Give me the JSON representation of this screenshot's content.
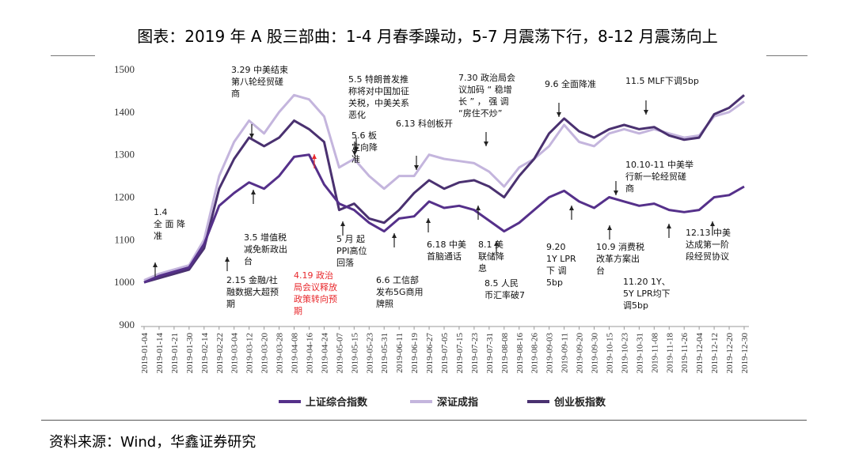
{
  "title": "图表：2019 年 A 股三部曲：1-4 月春季躁动，5-7 月震荡下行，8-12 月震荡向上",
  "source": "资料来源：Wind，华鑫证券研究",
  "chart_data": {
    "type": "line",
    "ylim": [
      900,
      1500
    ],
    "yticks": [
      900,
      1000,
      1100,
      1200,
      1300,
      1400,
      1500
    ],
    "x_labels": [
      "2019-01-04",
      "2019-01-14",
      "2019-01-21",
      "2019-01-30",
      "2019-02-14",
      "2019-02-22",
      "2019-03-04",
      "2019-03-12",
      "2019-03-20",
      "2019-03-28",
      "2019-04-08",
      "2019-04-16",
      "2019-04-24",
      "2019-05-07",
      "2019-05-15",
      "2019-05-23",
      "2019-05-31",
      "2019-06-11",
      "2019-06-19",
      "2019-06-27",
      "2019-07-05",
      "2019-07-15",
      "2019-07-23",
      "2019-07-31",
      "2019-08-08",
      "2019-08-16",
      "2019-08-26",
      "2019-09-03",
      "2019-09-11",
      "2019-09-20",
      "2019-09-30",
      "2019-10-15",
      "2019-10-23",
      "2019-10-31",
      "2019-11-08",
      "2019-11-18",
      "2019-11-26",
      "2019-12-04",
      "2019-12-12",
      "2019-12-20",
      "2019-12-30"
    ],
    "legend_position": "bottom",
    "series": [
      {
        "name": "上证综合指数",
        "color": "#55308a",
        "values": [
          1000,
          1015,
          1025,
          1035,
          1090,
          1180,
          1210,
          1235,
          1220,
          1250,
          1295,
          1300,
          1230,
          1185,
          1170,
          1140,
          1120,
          1150,
          1155,
          1190,
          1175,
          1180,
          1170,
          1145,
          1120,
          1140,
          1170,
          1200,
          1215,
          1190,
          1175,
          1200,
          1190,
          1180,
          1185,
          1170,
          1165,
          1170,
          1200,
          1205,
          1225
        ]
      },
      {
        "name": "深证成指",
        "color": "#c4b5dd",
        "values": [
          1005,
          1020,
          1030,
          1040,
          1100,
          1250,
          1330,
          1380,
          1350,
          1400,
          1440,
          1430,
          1390,
          1270,
          1290,
          1250,
          1220,
          1250,
          1250,
          1300,
          1290,
          1285,
          1280,
          1260,
          1225,
          1270,
          1290,
          1320,
          1370,
          1330,
          1320,
          1350,
          1360,
          1350,
          1360,
          1350,
          1340,
          1345,
          1390,
          1400,
          1425
        ]
      },
      {
        "name": "创业板指数",
        "color": "#4a3170",
        "values": [
          1000,
          1010,
          1020,
          1030,
          1080,
          1220,
          1290,
          1340,
          1320,
          1340,
          1380,
          1360,
          1330,
          1170,
          1185,
          1150,
          1140,
          1170,
          1210,
          1240,
          1220,
          1235,
          1240,
          1225,
          1200,
          1250,
          1290,
          1350,
          1385,
          1355,
          1340,
          1360,
          1370,
          1360,
          1365,
          1345,
          1335,
          1340,
          1395,
          1410,
          1440
        ]
      }
    ],
    "annotations": [
      {
        "lines": [
          "1.4",
          "全 面 降",
          "准"
        ],
        "at": 0,
        "color": "#111"
      },
      {
        "lines": [
          "3.29 中美结束",
          "第八轮经贸磋",
          "商"
        ],
        "at": 9,
        "color": "#111"
      },
      {
        "lines": [
          "5.5 特朗普发推",
          "称将对中国加征",
          "关税，中美关系",
          "恶化"
        ],
        "at": 13,
        "color": "#111"
      },
      {
        "lines": [
          "5.6 板",
          "定向降",
          "准"
        ],
        "at": 13,
        "color": "#111"
      },
      {
        "lines": [
          "6.13 科创板开"
        ],
        "at": 17,
        "color": "#111"
      },
      {
        "lines": [
          "7.30 政治局会",
          "议加码 “ 稳增",
          "长 ” ， 强 调",
          "“房住不炒”"
        ],
        "at": 23,
        "color": "#111"
      },
      {
        "lines": [
          "9.6 全面降准"
        ],
        "at": 27,
        "color": "#111"
      },
      {
        "lines": [
          "11.5 MLF下调5bp"
        ],
        "at": 34,
        "color": "#111"
      },
      {
        "lines": [
          "10.10-11 中美举",
          "行新一轮经贸磋",
          "商"
        ],
        "at": 31,
        "color": "#111"
      },
      {
        "lines": [
          "3.5 增值税",
          "减免新政出",
          "台"
        ],
        "at": 7,
        "color": "#111"
      },
      {
        "lines": [
          "2.15 金融/社",
          "融数据大超预",
          "期"
        ],
        "at": 4,
        "color": "#111"
      },
      {
        "lines": [
          "4.19 政治",
          "局会议释放",
          "政策转向预",
          "期"
        ],
        "at": 11,
        "color": "#e8282c"
      },
      {
        "lines": [
          "5 月 起",
          "PPI高位",
          "回落"
        ],
        "at": 13,
        "color": "#111"
      },
      {
        "lines": [
          "6.18 中美",
          "首脑通话"
        ],
        "at": 18,
        "color": "#111"
      },
      {
        "lines": [
          "8.1 美",
          "联储降",
          "息"
        ],
        "at": 24,
        "color": "#111"
      },
      {
        "lines": [
          "6.6 工信部",
          "发布5G商用",
          "牌照"
        ],
        "at": 17,
        "color": "#111"
      },
      {
        "lines": [
          "8.5 人民",
          "币汇率破7"
        ],
        "at": 24,
        "color": "#111"
      },
      {
        "lines": [
          "9.20",
          "1Y LPR",
          "下  调",
          "5bp"
        ],
        "at": 29,
        "color": "#111"
      },
      {
        "lines": [
          "10.9 消费税",
          "改革方案出",
          "台"
        ],
        "at": 31,
        "color": "#111"
      },
      {
        "lines": [
          "11.20 1Y、",
          "5Y LPR均下",
          "调5bp"
        ],
        "at": 35,
        "color": "#111"
      },
      {
        "lines": [
          "12.13 中美",
          "达成第一阶",
          "段经贸协议"
        ],
        "at": 38,
        "color": "#111"
      }
    ]
  }
}
